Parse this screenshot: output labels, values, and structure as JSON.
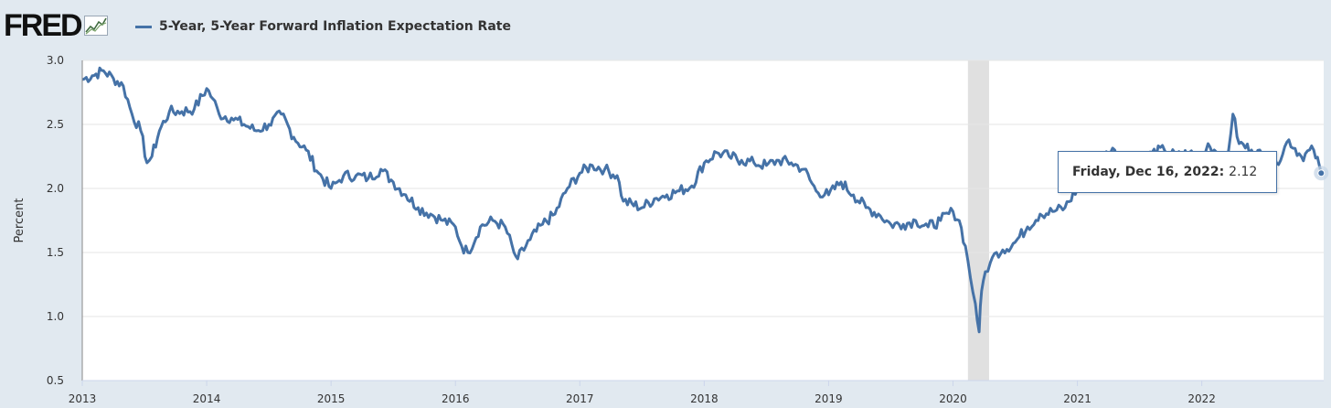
{
  "header": {
    "logo_text": "FRED",
    "series_title": "5-Year, 5-Year Forward Inflation Expectation Rate"
  },
  "colors": {
    "line": "#4572a7",
    "recession": "#e0e0e0",
    "background": "#e1e9f0",
    "plot": "#ffffff"
  },
  "tooltip": {
    "date": "Friday, Dec 16, 2022:",
    "value": "2.12"
  },
  "chart_data": {
    "type": "line",
    "title": "5-Year, 5-Year Forward Inflation Expectation Rate",
    "ylabel": "Percent",
    "xlabel": "",
    "ylim": [
      0.5,
      3.0
    ],
    "xlim": [
      2013.0,
      2022.98
    ],
    "yticks": [
      "0.5",
      "1.0",
      "1.5",
      "2.0",
      "2.5",
      "3.0"
    ],
    "xticks": [
      "2013",
      "2014",
      "2015",
      "2016",
      "2017",
      "2018",
      "2019",
      "2020",
      "2021",
      "2022"
    ],
    "grid": true,
    "legend_position": "top-left",
    "recession_shading": [
      [
        2020.12,
        2020.29
      ]
    ],
    "series": [
      {
        "name": "5-Year, 5-Year Forward Inflation Expectation Rate",
        "x": [
          2013.0,
          2013.08,
          2013.17,
          2013.25,
          2013.33,
          2013.4,
          2013.47,
          2013.52,
          2013.56,
          2013.62,
          2013.7,
          2013.8,
          2013.9,
          2014.0,
          2014.05,
          2014.1,
          2014.2,
          2014.3,
          2014.4,
          2014.5,
          2014.6,
          2014.7,
          2014.8,
          2014.9,
          2015.0,
          2015.05,
          2015.1,
          2015.2,
          2015.3,
          2015.4,
          2015.5,
          2015.6,
          2015.7,
          2015.8,
          2015.9,
          2016.0,
          2016.05,
          2016.1,
          2016.2,
          2016.3,
          2016.4,
          2016.47,
          2016.5,
          2016.6,
          2016.7,
          2016.8,
          2016.9,
          2017.0,
          2017.1,
          2017.2,
          2017.3,
          2017.35,
          2017.5,
          2017.6,
          2017.7,
          2017.8,
          2017.9,
          2018.0,
          2018.1,
          2018.2,
          2018.3,
          2018.4,
          2018.5,
          2018.6,
          2018.7,
          2018.8,
          2018.9,
          2019.0,
          2019.1,
          2019.2,
          2019.3,
          2019.4,
          2019.5,
          2019.6,
          2019.7,
          2019.8,
          2019.9,
          2020.0,
          2020.05,
          2020.1,
          2020.14,
          2020.18,
          2020.21,
          2020.23,
          2020.26,
          2020.3,
          2020.35,
          2020.4,
          2020.5,
          2020.6,
          2020.7,
          2020.8,
          2020.9,
          2021.0,
          2021.1,
          2021.2,
          2021.3,
          2021.4,
          2021.5,
          2021.6,
          2021.7,
          2021.8,
          2021.9,
          2022.0,
          2022.05,
          2022.1,
          2022.2,
          2022.25,
          2022.3,
          2022.4,
          2022.5,
          2022.6,
          2022.7,
          2022.8,
          2022.9,
          2022.96
        ],
        "y": [
          2.85,
          2.88,
          2.92,
          2.86,
          2.8,
          2.58,
          2.45,
          2.2,
          2.25,
          2.45,
          2.6,
          2.6,
          2.62,
          2.78,
          2.7,
          2.58,
          2.55,
          2.5,
          2.45,
          2.5,
          2.58,
          2.4,
          2.3,
          2.12,
          2.0,
          2.05,
          2.1,
          2.1,
          2.08,
          2.15,
          2.05,
          1.95,
          1.85,
          1.8,
          1.75,
          1.7,
          1.55,
          1.5,
          1.7,
          1.75,
          1.7,
          1.5,
          1.45,
          1.6,
          1.72,
          1.8,
          2.0,
          2.12,
          2.18,
          2.15,
          2.1,
          1.9,
          1.85,
          1.92,
          1.95,
          1.98,
          2.02,
          2.2,
          2.28,
          2.25,
          2.22,
          2.2,
          2.18,
          2.22,
          2.2,
          2.15,
          1.98,
          1.95,
          2.05,
          1.95,
          1.85,
          1.8,
          1.72,
          1.72,
          1.75,
          1.7,
          1.75,
          1.82,
          1.75,
          1.55,
          1.3,
          1.1,
          0.88,
          1.2,
          1.35,
          1.42,
          1.5,
          1.52,
          1.58,
          1.7,
          1.8,
          1.82,
          1.85,
          2.0,
          2.15,
          2.25,
          2.3,
          2.25,
          2.2,
          2.28,
          2.3,
          2.25,
          2.28,
          2.2,
          2.35,
          2.3,
          2.2,
          2.58,
          2.35,
          2.3,
          2.25,
          2.2,
          2.38,
          2.25,
          2.3,
          2.12
        ]
      }
    ]
  }
}
